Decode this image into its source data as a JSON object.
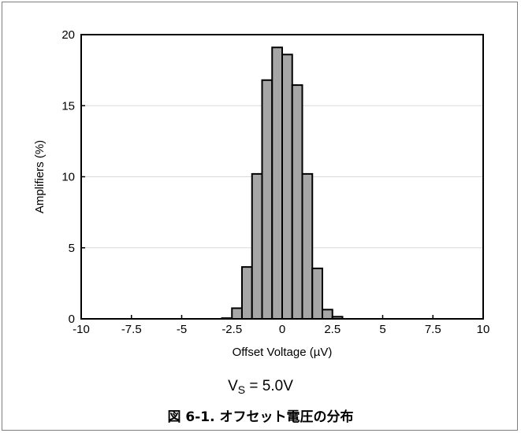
{
  "chart_data": {
    "type": "bar",
    "xlabel": "Offset Voltage (µV)",
    "ylabel": "Amplifiers (%)",
    "xlim": [
      -10,
      10
    ],
    "ylim": [
      0,
      20
    ],
    "xticks": [
      "-10",
      "-7.5",
      "-5",
      "-2.5",
      "0",
      "2.5",
      "5",
      "7.5",
      "10"
    ],
    "xtick_values": [
      -10,
      -7.5,
      -5,
      -2.5,
      0,
      2.5,
      5,
      7.5,
      10
    ],
    "yticks": [
      "0",
      "5",
      "10",
      "15",
      "20"
    ],
    "ytick_values": [
      0,
      5,
      10,
      15,
      20
    ],
    "grid": "horizontal",
    "bar_color": "#a6a6a6",
    "bin_width": 0.5,
    "bins": [
      {
        "x0": -3.0,
        "value": 0.05
      },
      {
        "x0": -2.5,
        "value": 0.75
      },
      {
        "x0": -2.0,
        "value": 3.65
      },
      {
        "x0": -1.5,
        "value": 10.2
      },
      {
        "x0": -1.0,
        "value": 16.8
      },
      {
        "x0": -0.5,
        "value": 19.1
      },
      {
        "x0": 0.0,
        "value": 18.6
      },
      {
        "x0": 0.5,
        "value": 16.45
      },
      {
        "x0": 1.0,
        "value": 10.2
      },
      {
        "x0": 1.5,
        "value": 3.55
      },
      {
        "x0": 2.0,
        "value": 0.65
      },
      {
        "x0": 2.5,
        "value": 0.15
      }
    ]
  },
  "condition": {
    "symbol": "V",
    "subscript": "S",
    "rest": " = 5.0V"
  },
  "caption": "図 6-1. オフセット電圧の分布"
}
